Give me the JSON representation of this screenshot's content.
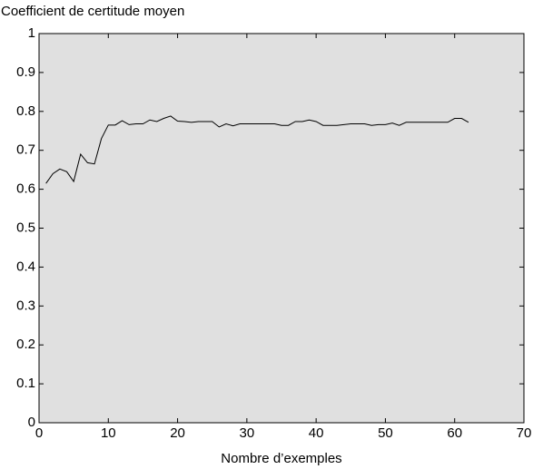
{
  "chart_data": {
    "type": "line",
    "title": "Coefficient de certitude moyen",
    "x_label": "Nombre d’exemples",
    "x": [
      1,
      2,
      3,
      4,
      5,
      6,
      7,
      8,
      9,
      10,
      11,
      12,
      13,
      14,
      15,
      16,
      17,
      18,
      19,
      20,
      21,
      22,
      23,
      24,
      25,
      26,
      27,
      28,
      29,
      30,
      31,
      32,
      33,
      34,
      35,
      36,
      37,
      38,
      39,
      40,
      41,
      42,
      43,
      44,
      45,
      46,
      47,
      48,
      49,
      50,
      51,
      52,
      53,
      54,
      55,
      56,
      57,
      58,
      59,
      60,
      61,
      62
    ],
    "series": [
      {
        "name": "Coefficient de certitude moyen",
        "color": "#000000",
        "values": [
          0.615,
          0.64,
          0.652,
          0.645,
          0.62,
          0.69,
          0.668,
          0.665,
          0.73,
          0.765,
          0.765,
          0.776,
          0.766,
          0.768,
          0.768,
          0.778,
          0.774,
          0.782,
          0.788,
          0.775,
          0.774,
          0.772,
          0.774,
          0.774,
          0.774,
          0.76,
          0.768,
          0.763,
          0.768,
          0.768,
          0.768,
          0.768,
          0.768,
          0.768,
          0.764,
          0.764,
          0.774,
          0.774,
          0.778,
          0.774,
          0.764,
          0.764,
          0.764,
          0.766,
          0.768,
          0.768,
          0.768,
          0.764,
          0.766,
          0.766,
          0.77,
          0.764,
          0.772,
          0.772,
          0.772,
          0.772,
          0.772,
          0.772,
          0.772,
          0.782,
          0.782,
          0.772
        ]
      }
    ],
    "xlim": [
      0,
      70
    ],
    "xticks": [
      0,
      10,
      20,
      30,
      40,
      50,
      60,
      70
    ],
    "ylim": [
      0,
      1
    ],
    "yticks": [
      0,
      0.1,
      0.2,
      0.3,
      0.4,
      0.5,
      0.6,
      0.7,
      0.8,
      0.9,
      1
    ],
    "plot_background": "#e0e0e0"
  }
}
